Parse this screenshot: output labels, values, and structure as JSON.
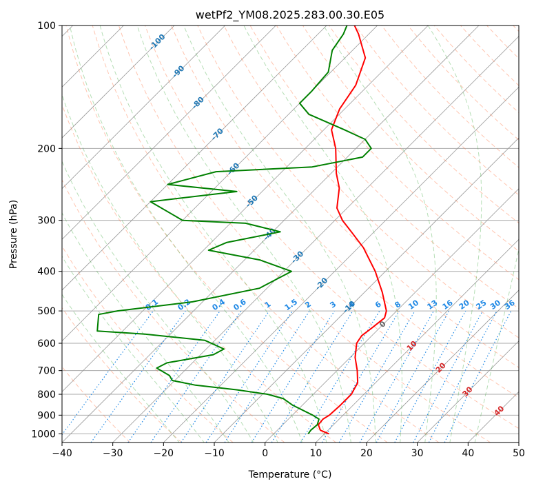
{
  "chart_data": {
    "type": "line",
    "title": "wetPf2_YM08.2025.283.00.30.E05",
    "xlabel": "Temperature (°C)",
    "ylabel": "Pressure (hPa)",
    "xlim": [
      -40,
      50
    ],
    "ylim": [
      1050,
      100
    ],
    "y_scale": "log",
    "grid": true,
    "x_ticks": [
      -40,
      -30,
      -20,
      -10,
      0,
      10,
      20,
      30,
      40,
      50
    ],
    "y_ticks": [
      100,
      200,
      300,
      400,
      500,
      600,
      700,
      800,
      900,
      1000
    ],
    "skew_note": "skew-T log-p diagram",
    "colors": {
      "temperature": "#ff0000",
      "dewpoint": "#008000",
      "isotherm": "#999999",
      "dry_adiabat": "#ff7f50",
      "moist_adiabat": "#2ca02c",
      "mixing_ratio": "#1e88e5",
      "isotherm_label": "#1f77b4",
      "warm_label": "#d62728"
    },
    "series": [
      {
        "role": "temperature",
        "points": [
          {
            "p": 1000,
            "t": 10.9
          },
          {
            "p": 980,
            "t": 8.5
          },
          {
            "p": 950,
            "t": 7.0
          },
          {
            "p": 920,
            "t": 6.8
          },
          {
            "p": 900,
            "t": 7.3
          },
          {
            "p": 850,
            "t": 7.5
          },
          {
            "p": 800,
            "t": 7.5
          },
          {
            "p": 750,
            "t": 6.5
          },
          {
            "p": 700,
            "t": 4.0
          },
          {
            "p": 650,
            "t": 1.0
          },
          {
            "p": 600,
            "t": -1.5
          },
          {
            "p": 575,
            "t": -2.0
          },
          {
            "p": 550,
            "t": -1.5
          },
          {
            "p": 520,
            "t": -1.0
          },
          {
            "p": 500,
            "t": -2.0
          },
          {
            "p": 450,
            "t": -6.5
          },
          {
            "p": 400,
            "t": -12.0
          },
          {
            "p": 350,
            "t": -19.0
          },
          {
            "p": 320,
            "t": -24.5
          },
          {
            "p": 300,
            "t": -28.5
          },
          {
            "p": 280,
            "t": -32.0
          },
          {
            "p": 250,
            "t": -35.5
          },
          {
            "p": 230,
            "t": -39.0
          },
          {
            "p": 200,
            "t": -44.0
          },
          {
            "p": 180,
            "t": -48.5
          },
          {
            "p": 160,
            "t": -51.0
          },
          {
            "p": 140,
            "t": -52.5
          },
          {
            "p": 120,
            "t": -56.0
          },
          {
            "p": 105,
            "t": -62.0
          },
          {
            "p": 100,
            "t": -64.5
          }
        ]
      },
      {
        "role": "dewpoint",
        "points": [
          {
            "p": 1000,
            "t": 6.8
          },
          {
            "p": 980,
            "t": 6.6
          },
          {
            "p": 950,
            "t": 6.8
          },
          {
            "p": 920,
            "t": 6.0
          },
          {
            "p": 900,
            "t": 4.0
          },
          {
            "p": 850,
            "t": -2.0
          },
          {
            "p": 820,
            "t": -5.0
          },
          {
            "p": 800,
            "t": -9.0
          },
          {
            "p": 780,
            "t": -16.0
          },
          {
            "p": 760,
            "t": -25.0
          },
          {
            "p": 740,
            "t": -30.5
          },
          {
            "p": 720,
            "t": -32.0
          },
          {
            "p": 690,
            "t": -36.0
          },
          {
            "p": 670,
            "t": -35.0
          },
          {
            "p": 640,
            "t": -27.5
          },
          {
            "p": 620,
            "t": -26.5
          },
          {
            "p": 590,
            "t": -32.0
          },
          {
            "p": 570,
            "t": -45.0
          },
          {
            "p": 560,
            "t": -55.0
          },
          {
            "p": 510,
            "t": -58.0
          },
          {
            "p": 500,
            "t": -55.0
          },
          {
            "p": 475,
            "t": -42.0
          },
          {
            "p": 440,
            "t": -31.5
          },
          {
            "p": 400,
            "t": -28.5
          },
          {
            "p": 375,
            "t": -37.0
          },
          {
            "p": 355,
            "t": -49.0
          },
          {
            "p": 340,
            "t": -47.0
          },
          {
            "p": 320,
            "t": -38.5
          },
          {
            "p": 305,
            "t": -47.0
          },
          {
            "p": 300,
            "t": -60.0
          },
          {
            "p": 270,
            "t": -70.0
          },
          {
            "p": 255,
            "t": -55.0
          },
          {
            "p": 245,
            "t": -70.0
          },
          {
            "p": 240,
            "t": -68.0
          },
          {
            "p": 228,
            "t": -63.0
          },
          {
            "p": 222,
            "t": -45.0
          },
          {
            "p": 210,
            "t": -37.0
          },
          {
            "p": 200,
            "t": -37.0
          },
          {
            "p": 190,
            "t": -40.0
          },
          {
            "p": 180,
            "t": -46.0
          },
          {
            "p": 165,
            "t": -56.0
          },
          {
            "p": 155,
            "t": -60.0
          },
          {
            "p": 145,
            "t": -60.0
          },
          {
            "p": 130,
            "t": -60.5
          },
          {
            "p": 115,
            "t": -64.0
          },
          {
            "p": 105,
            "t": -65.0
          },
          {
            "p": 100,
            "t": -66.0
          }
        ]
      }
    ],
    "isotherm_labels": [
      "-100",
      "-90",
      "-80",
      "-70",
      "-60",
      "-50",
      "-40",
      "-30",
      "-20",
      "-10"
    ],
    "mixing_ratio_labels": [
      "0.1",
      "0.2",
      "0.4",
      "0.6",
      "1",
      "1.5",
      "2",
      "3",
      "4",
      "6",
      "8",
      "10",
      "13",
      "16",
      "20",
      "25",
      "30",
      "36"
    ],
    "mixing_ratio_values": [
      0.1,
      0.2,
      0.4,
      0.6,
      1,
      1.5,
      2,
      3,
      4,
      6,
      8,
      10,
      13,
      16,
      20,
      25,
      30,
      36
    ],
    "warm_isotherm_labels": [
      "0",
      "10",
      "20",
      "30",
      "40"
    ]
  }
}
